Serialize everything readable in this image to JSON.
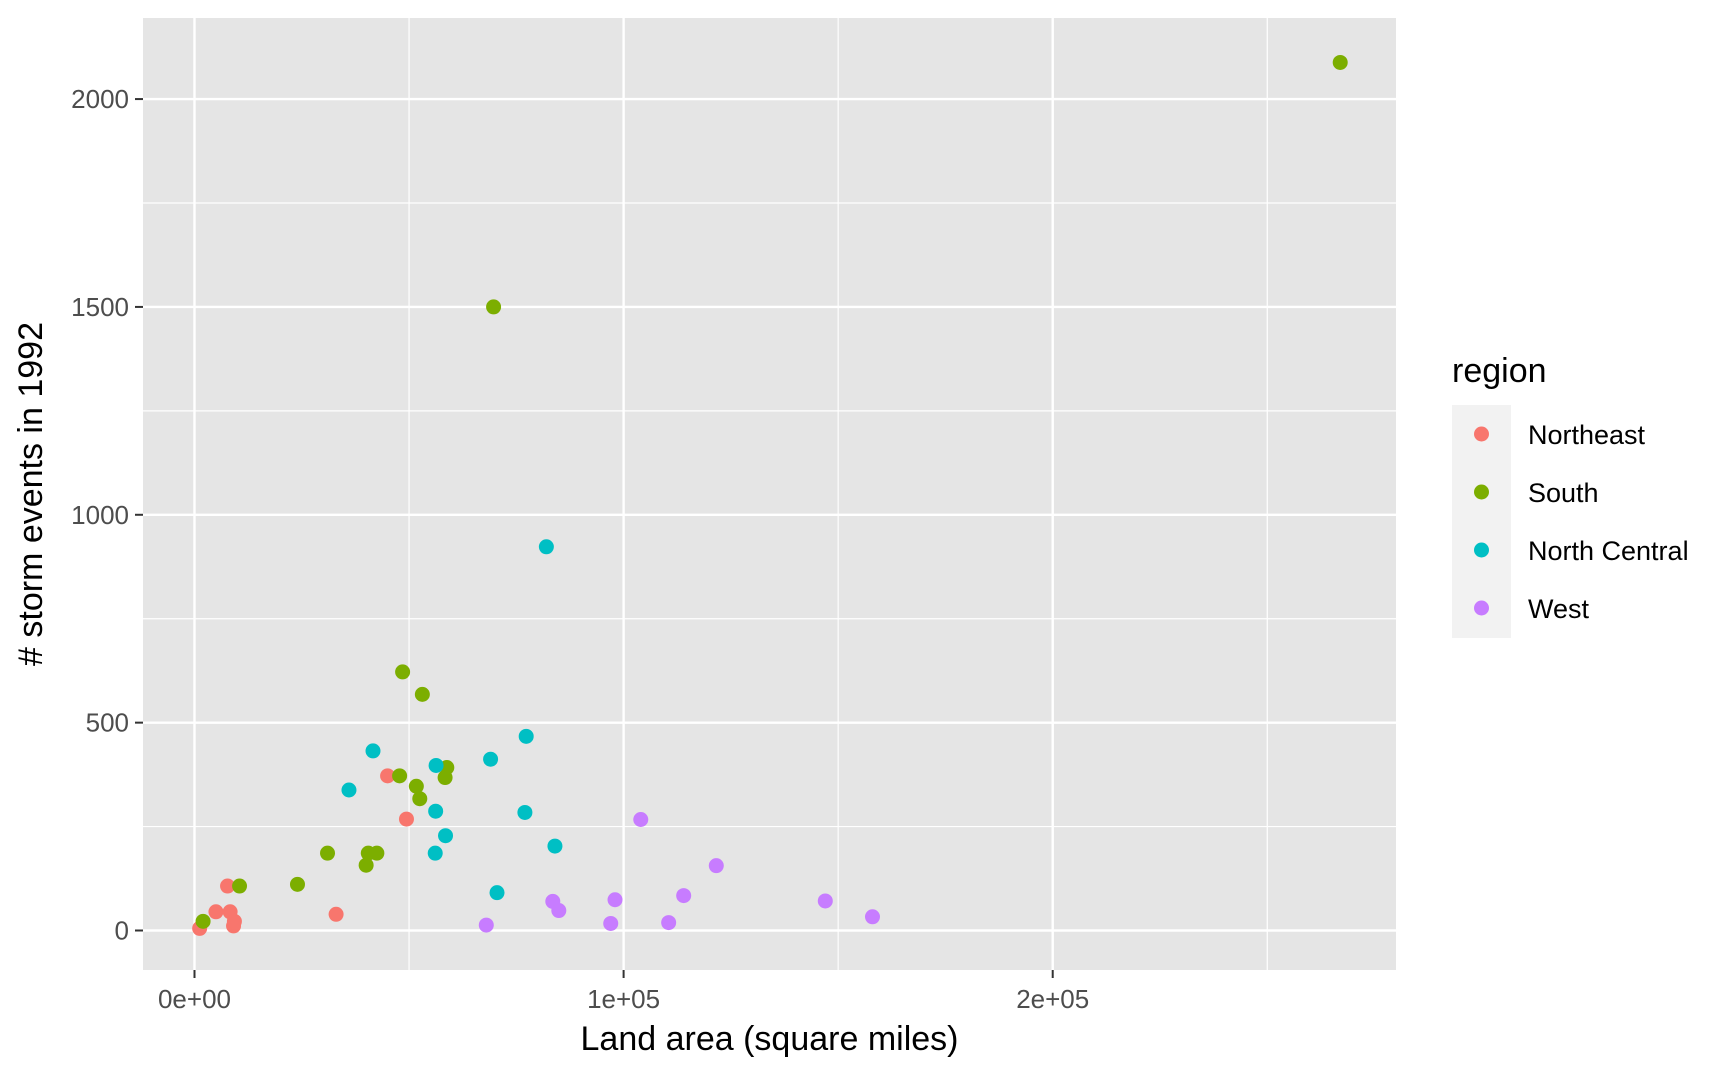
{
  "chart_data": {
    "type": "scatter",
    "xlabel": "Land area (square miles)",
    "ylabel": "# storm events in 1992",
    "xlim": [
      -12000,
      280000
    ],
    "ylim": [
      -95,
      2195
    ],
    "x_ticks": [
      0,
      100000,
      200000
    ],
    "x_tick_labels": [
      "0e+00",
      "1e+05",
      "2e+05"
    ],
    "x_minor_ticks": [
      50000,
      150000,
      250000
    ],
    "y_ticks": [
      0,
      500,
      1000,
      1500,
      2000
    ],
    "y_tick_labels": [
      "0",
      "500",
      "1000",
      "1500",
      "2000"
    ],
    "y_minor_ticks": [
      250,
      750,
      1250,
      1750
    ],
    "grid": true,
    "legend_title": "region",
    "legend_position": "right",
    "colors": {
      "panel_background": "#E5E5E5",
      "grid": "#FFFFFF",
      "legend_key_background": "#F2F2F2"
    },
    "series": [
      {
        "name": "Northeast",
        "color": "#F8766D",
        "points": [
          [
            1200,
            5
          ],
          [
            5000,
            45
          ],
          [
            7700,
            107
          ],
          [
            8300,
            45
          ],
          [
            9100,
            11
          ],
          [
            9300,
            22
          ],
          [
            33000,
            39
          ],
          [
            45000,
            372
          ],
          [
            49400,
            268
          ]
        ]
      },
      {
        "name": "South",
        "color": "#7CAE00",
        "points": [
          [
            2000,
            22
          ],
          [
            10500,
            107
          ],
          [
            24000,
            111
          ],
          [
            31000,
            186
          ],
          [
            40000,
            157
          ],
          [
            40500,
            186
          ],
          [
            42500,
            186
          ],
          [
            47800,
            372
          ],
          [
            48500,
            622
          ],
          [
            51700,
            347
          ],
          [
            52500,
            317
          ],
          [
            53100,
            568
          ],
          [
            58400,
            368
          ],
          [
            58800,
            392
          ],
          [
            69700,
            1500
          ],
          [
            267000,
            2088
          ]
        ]
      },
      {
        "name": "North Central",
        "color": "#00BFC4",
        "points": [
          [
            36000,
            338
          ],
          [
            41600,
            432
          ],
          [
            56100,
            186
          ],
          [
            56200,
            287
          ],
          [
            56300,
            397
          ],
          [
            58500,
            228
          ],
          [
            69000,
            412
          ],
          [
            70500,
            91
          ],
          [
            77000,
            284
          ],
          [
            77300,
            467
          ],
          [
            82000,
            923
          ],
          [
            84000,
            203
          ]
        ]
      },
      {
        "name": "West",
        "color": "#C77CFF",
        "points": [
          [
            68000,
            13
          ],
          [
            83500,
            70
          ],
          [
            84900,
            48
          ],
          [
            97000,
            17
          ],
          [
            98000,
            74
          ],
          [
            104000,
            267
          ],
          [
            110500,
            19
          ],
          [
            114000,
            84
          ],
          [
            121600,
            156
          ],
          [
            147000,
            71
          ],
          [
            158000,
            33
          ]
        ]
      }
    ]
  }
}
